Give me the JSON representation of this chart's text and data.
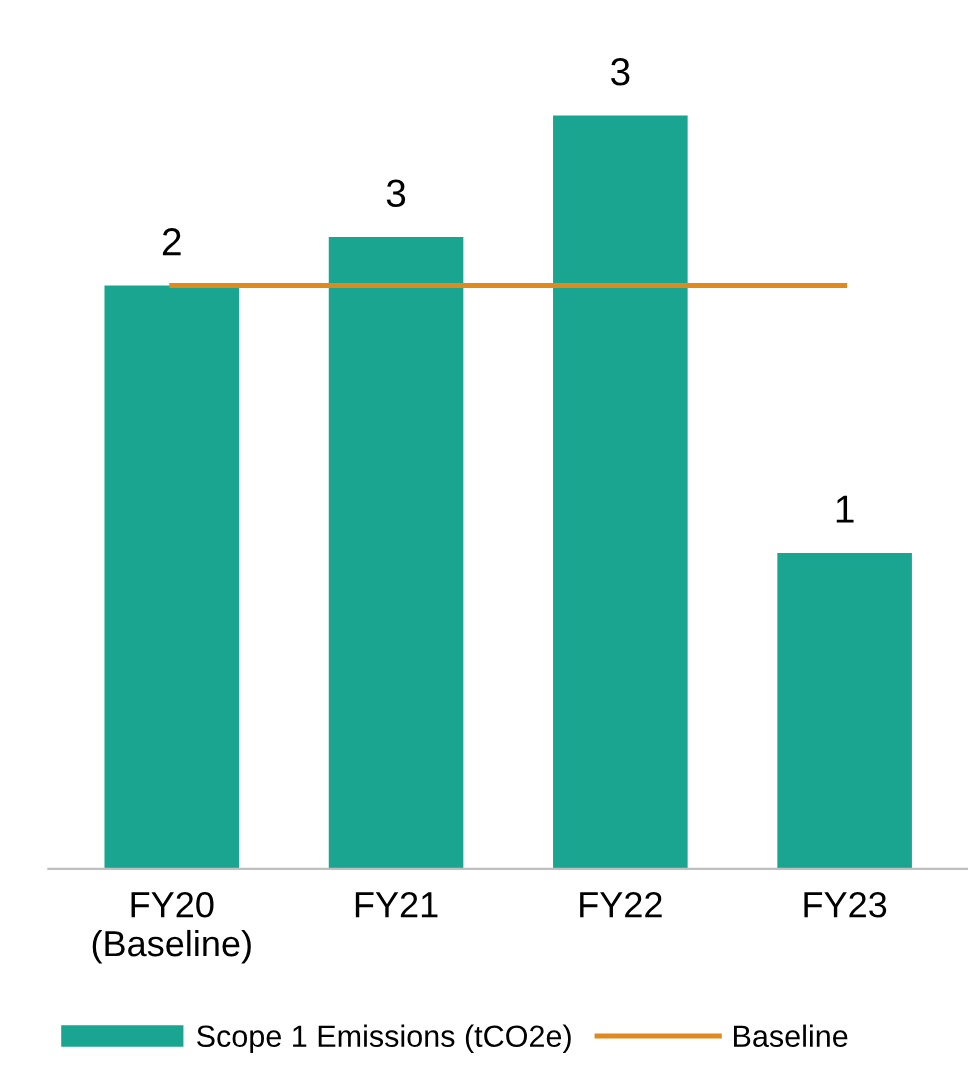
{
  "chart_data": {
    "type": "bar",
    "categories": [
      "FY20\n(Baseline)",
      "FY21",
      "FY22",
      "FY23"
    ],
    "series": [
      {
        "name": "Scope 1 Emissions (tCO2e)",
        "color": "#1aa591",
        "values": [
          2.4,
          2.6,
          3.1,
          1.3
        ],
        "value_labels": [
          "2",
          "3",
          "3",
          "1"
        ]
      },
      {
        "name": "Baseline",
        "type": "line",
        "color": "#e08a1e",
        "values": [
          2.4,
          2.4,
          2.4,
          2.4
        ]
      }
    ],
    "tick_labels": "x",
    "legend": "bottom",
    "grid": false
  }
}
